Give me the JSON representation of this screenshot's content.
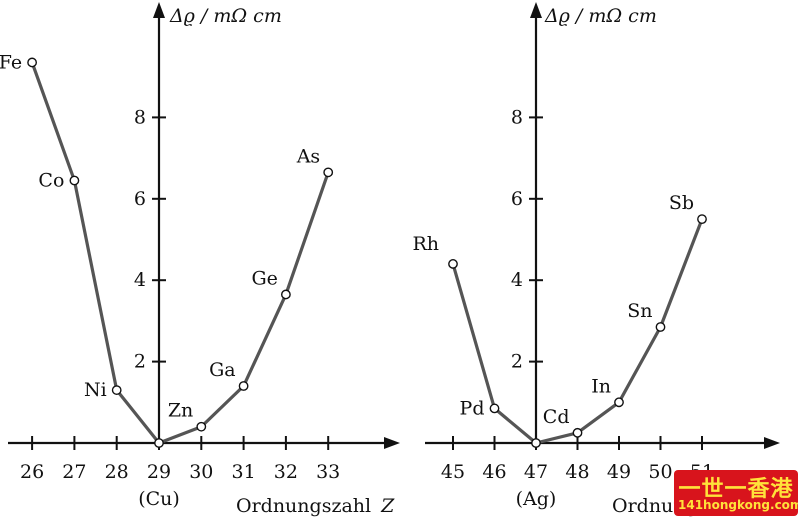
{
  "colors": {
    "axis": "#111111",
    "line": "#555555",
    "marker_fill": "#ffffff",
    "marker_stroke": "#111111"
  },
  "chart_data": [
    {
      "type": "line",
      "panel": "left",
      "ylabel": "Δϱ / mΩ cm",
      "xlabel": "Ordnungszahl",
      "xlabel_symbol": "Z",
      "xlim": [
        25.5,
        34.3
      ],
      "ylim": [
        0,
        10.5
      ],
      "x_ticks": [
        26,
        27,
        28,
        29,
        30,
        31,
        32,
        33
      ],
      "x_tick_labels": [
        "26",
        "27",
        "28",
        "29",
        "30",
        "31",
        "32",
        "33"
      ],
      "y_ticks": [
        2,
        4,
        6,
        8
      ],
      "y_tick_labels": [
        "2",
        "4",
        "6",
        "8"
      ],
      "y_axis_at": 29,
      "sub_label": {
        "x": 29,
        "text": "(Cu)"
      },
      "series": [
        {
          "name": "left-branch",
          "points": [
            {
              "x": 26,
              "y": 9.35,
              "label": "Fe",
              "label_side": "left"
            },
            {
              "x": 27,
              "y": 6.45,
              "label": "Co",
              "label_side": "left"
            },
            {
              "x": 28,
              "y": 1.3,
              "label": "Ni",
              "label_side": "left"
            },
            {
              "x": 29,
              "y": 0,
              "label": "",
              "label_side": "none"
            }
          ]
        },
        {
          "name": "right-branch",
          "points": [
            {
              "x": 29,
              "y": 0,
              "label": "",
              "label_side": "none"
            },
            {
              "x": 30,
              "y": 0.4,
              "label": "Zn",
              "label_side": "above-left"
            },
            {
              "x": 31,
              "y": 1.4,
              "label": "Ga",
              "label_side": "above-left"
            },
            {
              "x": 32,
              "y": 3.65,
              "label": "Ge",
              "label_side": "above-left"
            },
            {
              "x": 33,
              "y": 6.65,
              "label": "As",
              "label_side": "above-left"
            }
          ]
        }
      ]
    },
    {
      "type": "line",
      "panel": "right",
      "ylabel": "Δϱ / mΩ cm",
      "xlabel": "Ordnung",
      "xlabel_symbol": "",
      "xlim": [
        44.5,
        52.5
      ],
      "ylim": [
        0,
        10.5
      ],
      "x_ticks": [
        45,
        46,
        47,
        48,
        49,
        50,
        51
      ],
      "x_tick_labels": [
        "45",
        "46",
        "47",
        "48",
        "49",
        "50",
        "51"
      ],
      "y_ticks": [
        2,
        4,
        6,
        8
      ],
      "y_tick_labels": [
        "2",
        "4",
        "6",
        "8"
      ],
      "y_axis_at": 47,
      "sub_label": {
        "x": 47,
        "text": "(Ag)"
      },
      "series": [
        {
          "name": "left-branch",
          "points": [
            {
              "x": 45,
              "y": 4.4,
              "label": "Rh",
              "label_side": "upper-left"
            },
            {
              "x": 46,
              "y": 0.85,
              "label": "Pd",
              "label_side": "left"
            },
            {
              "x": 47,
              "y": 0,
              "label": "",
              "label_side": "none"
            }
          ]
        },
        {
          "name": "right-branch",
          "points": [
            {
              "x": 47,
              "y": 0,
              "label": "",
              "label_side": "none"
            },
            {
              "x": 48,
              "y": 0.25,
              "label": "Cd",
              "label_side": "above-left"
            },
            {
              "x": 49,
              "y": 1.0,
              "label": "In",
              "label_side": "above-left"
            },
            {
              "x": 50,
              "y": 2.85,
              "label": "Sn",
              "label_side": "above-left"
            },
            {
              "x": 51,
              "y": 5.5,
              "label": "Sb",
              "label_side": "above-left"
            }
          ]
        }
      ]
    }
  ],
  "watermark": {
    "line1": "一世一香港",
    "line2": "141hongkong.com"
  }
}
